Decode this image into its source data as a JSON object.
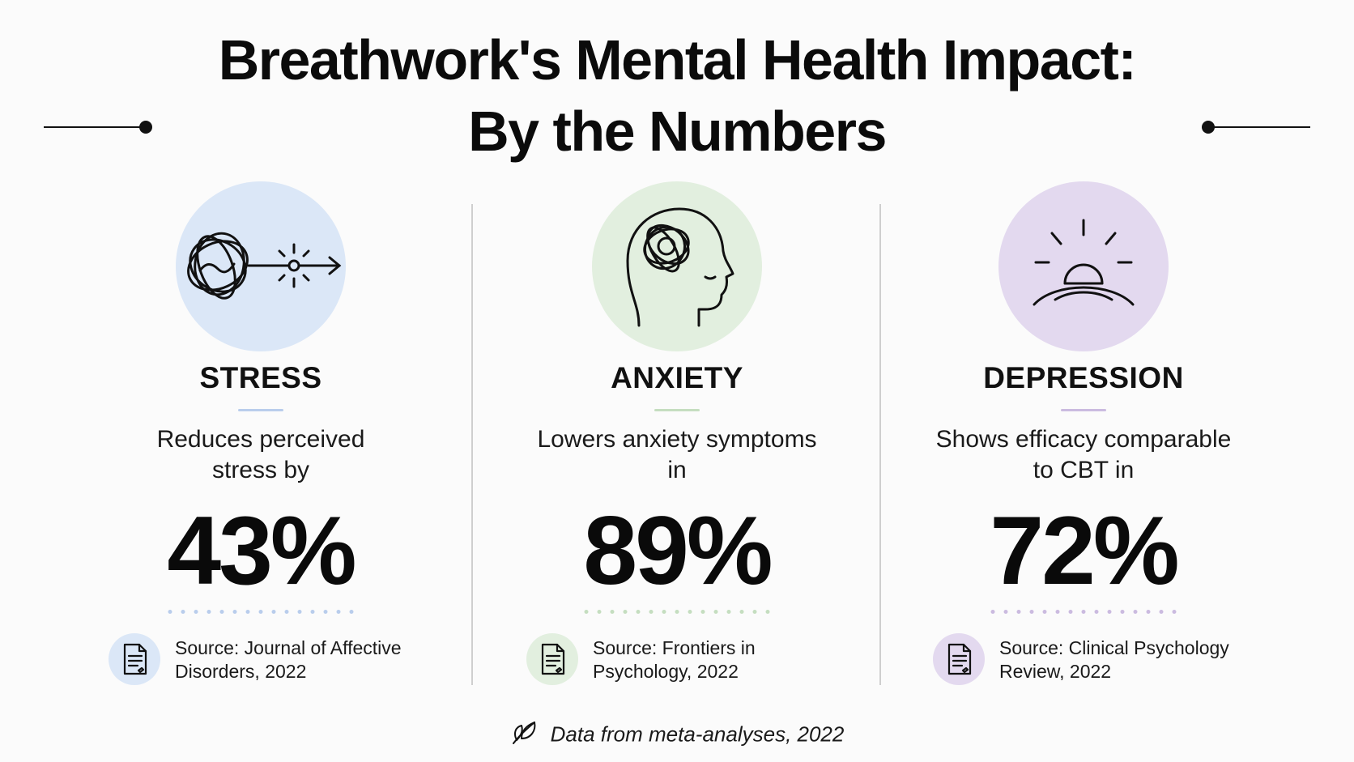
{
  "title": {
    "line1": "Breathwork's Mental Health Impact:",
    "line2": "By the Numbers"
  },
  "columns": [
    {
      "category": "STRESS",
      "description_line1": "Reduces perceived",
      "description_line2": "stress by",
      "stat": "43%",
      "source_line1": "Source: Journal of Affective",
      "source_line2": "Disorders, 2022",
      "icon": "tangled-scribble-arrow-icon",
      "accent": "#dbe7f7",
      "accent_strong": "#b9cdec"
    },
    {
      "category": "ANXIETY",
      "description_line1": "Lowers anxiety symptoms",
      "description_line2": "in",
      "stat": "89%",
      "source_line1": "Source: Frontiers in",
      "source_line2": "Psychology, 2022",
      "icon": "head-tangled-thoughts-icon",
      "accent": "#e2efdf",
      "accent_strong": "#c5dec0"
    },
    {
      "category": "DEPRESSION",
      "description_line1": "Shows efficacy comparable",
      "description_line2": "to CBT in",
      "stat": "72%",
      "source_line1": "Source: Clinical Psychology",
      "source_line2": "Review, 2022",
      "icon": "sunrise-icon",
      "accent": "#e3d9ef",
      "accent_strong": "#cbbbe0"
    }
  ],
  "footer": {
    "text": "Data from meta-analyses, 2022",
    "icon": "leaf-icon"
  }
}
